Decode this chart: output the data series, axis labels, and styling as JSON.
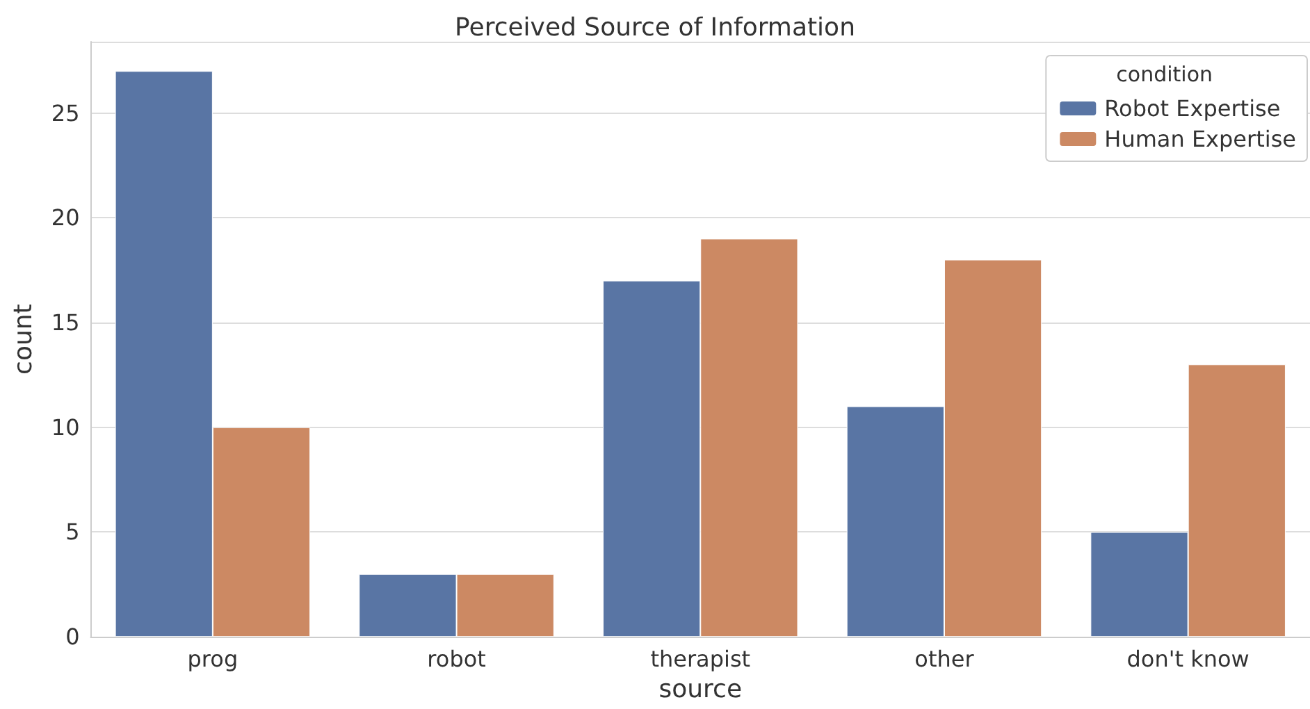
{
  "chart_data": {
    "type": "bar",
    "title": "Perceived Source of Information",
    "xlabel": "source",
    "ylabel": "count",
    "legend_title": "condition",
    "categories": [
      "prog",
      "robot",
      "therapist",
      "other",
      "don't know"
    ],
    "series": [
      {
        "name": "Robot Expertise",
        "color": "#5975a4",
        "values": [
          27,
          3,
          17,
          11,
          5
        ]
      },
      {
        "name": "Human Expertise",
        "color": "#cc8963",
        "values": [
          10,
          3,
          19,
          18,
          13
        ]
      }
    ],
    "ylim": [
      0,
      28.4
    ],
    "yticks": [
      0,
      5,
      10,
      15,
      20,
      25
    ],
    "grid": "y",
    "legend": "top right"
  }
}
